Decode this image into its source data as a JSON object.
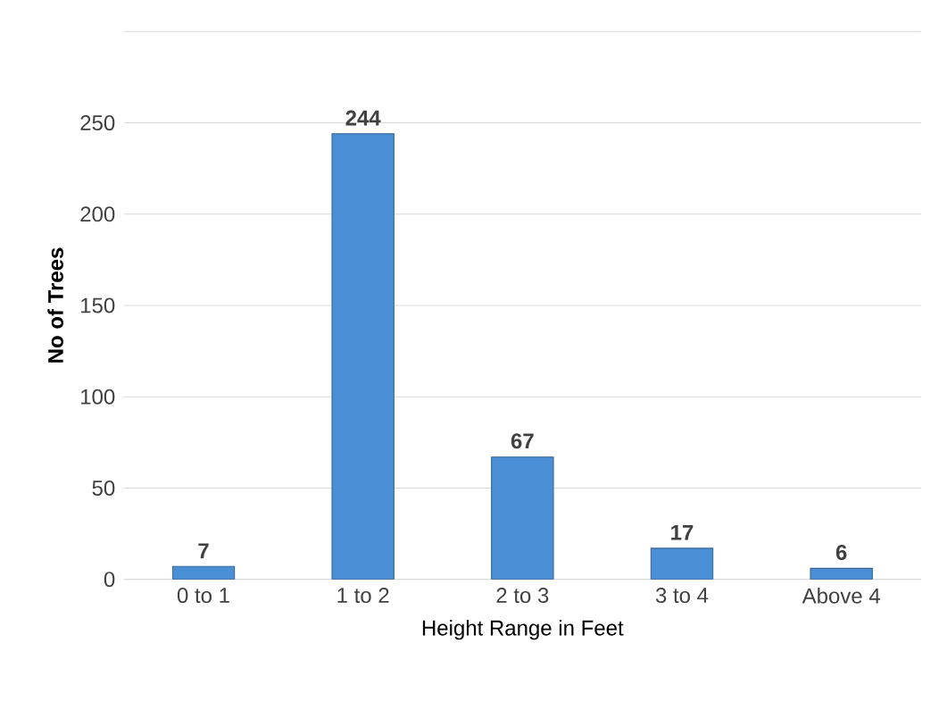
{
  "chart_data": {
    "type": "bar",
    "xlabel": "Height Range in Feet",
    "ylabel": "No of Trees",
    "categories": [
      "0 to 1",
      "1 to 2",
      "2 to 3",
      "3 to 4",
      "Above 4"
    ],
    "values": [
      7,
      244,
      67,
      17,
      6
    ],
    "color": "#4a8fd6",
    "ylim": [
      0,
      300
    ],
    "yticks": [
      0,
      50,
      100,
      150,
      200,
      250,
      {
        "value": 300,
        "label": null
      }
    ],
    "grid": "y",
    "data_labels": true
  }
}
